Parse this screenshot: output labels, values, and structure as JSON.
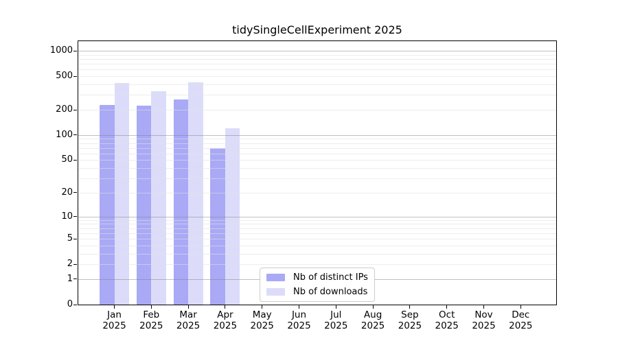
{
  "chart_data": {
    "type": "bar",
    "title": "tidySingleCellExperiment 2025",
    "y_scale": "log10(1+x)",
    "y_max": 1300,
    "y_ticks": [
      0,
      1,
      2,
      5,
      10,
      20,
      50,
      100,
      200,
      500,
      1000
    ],
    "x_categories": [
      {
        "month": "Jan",
        "year": "2025"
      },
      {
        "month": "Feb",
        "year": "2025"
      },
      {
        "month": "Mar",
        "year": "2025"
      },
      {
        "month": "Apr",
        "year": "2025"
      },
      {
        "month": "May",
        "year": "2025"
      },
      {
        "month": "Jun",
        "year": "2025"
      },
      {
        "month": "Jul",
        "year": "2025"
      },
      {
        "month": "Aug",
        "year": "2025"
      },
      {
        "month": "Sep",
        "year": "2025"
      },
      {
        "month": "Oct",
        "year": "2025"
      },
      {
        "month": "Nov",
        "year": "2025"
      },
      {
        "month": "Dec",
        "year": "2025"
      }
    ],
    "series": [
      {
        "name": "Nb of distinct IPs",
        "color": "#a9a9f6",
        "values": [
          228,
          226,
          266,
          70,
          null,
          null,
          null,
          null,
          null,
          null,
          null,
          null
        ]
      },
      {
        "name": "Nb of downloads",
        "color": "#dcdcfa",
        "values": [
          415,
          335,
          425,
          120,
          null,
          null,
          null,
          null,
          null,
          null,
          null,
          null
        ]
      }
    ],
    "grid": {
      "major_values": [
        1,
        10,
        100,
        1000
      ],
      "minor_values": [
        2,
        3,
        4,
        5,
        6,
        7,
        8,
        9,
        20,
        30,
        40,
        50,
        60,
        70,
        80,
        90,
        200,
        300,
        400,
        500,
        600,
        700,
        800,
        900
      ],
      "major_color": "rgba(130,130,130,0.5)",
      "minor_color": "rgba(225,225,225,0.6)"
    },
    "legend_position": "lower center-left"
  },
  "colors": {
    "background": "#ffffff",
    "spine": "#000000",
    "bar_distinct_ips": "#a9a9f6",
    "bar_downloads": "#dcdcfa"
  }
}
